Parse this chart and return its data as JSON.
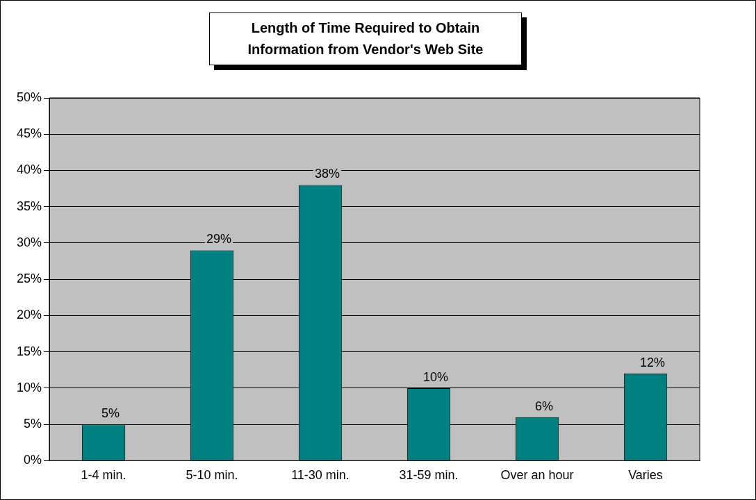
{
  "chart_data": {
    "type": "bar",
    "title": "Length of Time Required to Obtain Information from Vendor's Web Site",
    "categories": [
      "1-4 min.",
      "5-10 min.",
      "11-30 min.",
      "31-59 min.",
      "Over an hour",
      "Varies"
    ],
    "values": [
      5,
      29,
      38,
      10,
      6,
      12
    ],
    "value_labels": [
      "5%",
      "29%",
      "38%",
      "10%",
      "6%",
      "12%"
    ],
    "color": "#008080",
    "ylim": [
      0,
      50
    ],
    "yticks": [
      {
        "value": 0,
        "label": "0%"
      },
      {
        "value": 5,
        "label": "5%"
      },
      {
        "value": 10,
        "label": "10%"
      },
      {
        "value": 15,
        "label": "15%"
      },
      {
        "value": 20,
        "label": "20%"
      },
      {
        "value": 25,
        "label": "25%"
      },
      {
        "value": 30,
        "label": "30%"
      },
      {
        "value": 35,
        "label": "35%"
      },
      {
        "value": 40,
        "label": "40%"
      },
      {
        "value": 45,
        "label": "45%"
      },
      {
        "value": 50,
        "label": "50%"
      }
    ],
    "grid": "y",
    "legend": false
  }
}
